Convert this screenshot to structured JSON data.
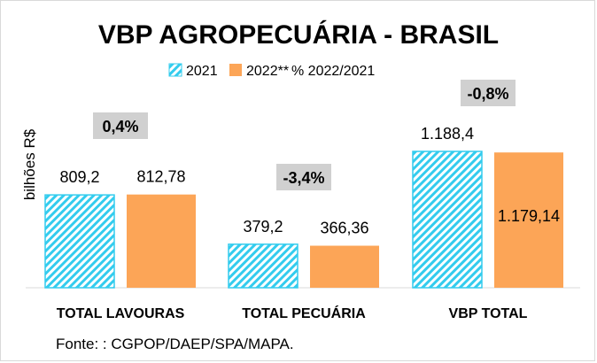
{
  "chart_data": {
    "type": "bar",
    "title": "VBP AGROPECUÁRIA - BRASIL",
    "ylabel": "bilhões R$",
    "categories": [
      "TOTAL LAVOURAS",
      "TOTAL PECUÁRIA",
      "VBP TOTAL"
    ],
    "series": [
      {
        "name": "2021",
        "values": [
          809.2,
          379.2,
          1188.4
        ],
        "labels": [
          "809,2",
          "379,2",
          "1.188,4"
        ],
        "color": "#33ccee",
        "pattern": "diagonal-hatch"
      },
      {
        "name": "2022**",
        "values": [
          812.78,
          366.36,
          1179.14
        ],
        "labels": [
          "812,78",
          "366,36",
          "1.179,14"
        ],
        "color": "#fca557"
      }
    ],
    "change_legend": "% 2022/2021",
    "changes": [
      "0,4%",
      "-3,4%",
      "-0,8%"
    ],
    "change_box_color": "#d0d0d0",
    "ylim": [
      0,
      1300
    ],
    "grid": false,
    "legend_position": "top",
    "source": "Fonte: : CGPOP/DAEP/SPA/MAPA."
  }
}
